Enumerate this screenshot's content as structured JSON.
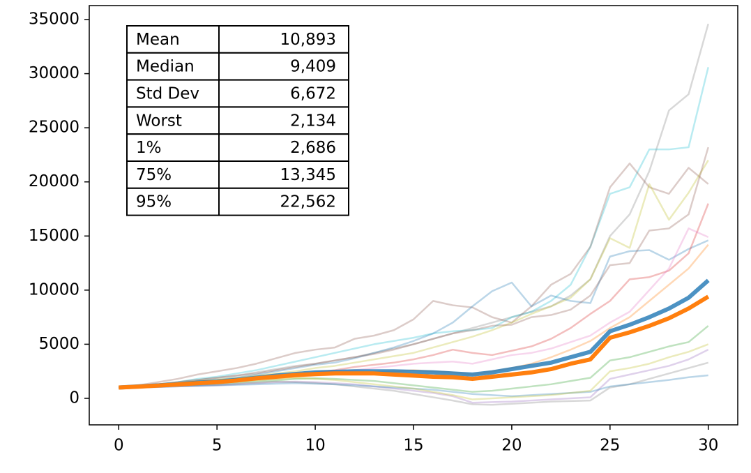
{
  "chart_data": {
    "type": "line",
    "x": [
      0,
      1,
      2,
      3,
      4,
      5,
      6,
      7,
      8,
      9,
      10,
      11,
      12,
      13,
      14,
      15,
      16,
      17,
      18,
      19,
      20,
      21,
      22,
      23,
      24,
      25,
      26,
      27,
      28,
      29,
      30
    ],
    "xlim": [
      -1.5,
      31.5
    ],
    "ylim": [
      -2450,
      36290
    ],
    "xticks": [
      0,
      5,
      10,
      15,
      20,
      25,
      30
    ],
    "yticks": [
      0,
      5000,
      10000,
      15000,
      20000,
      25000,
      30000,
      35000
    ],
    "series": [
      {
        "color": "#7f7f7f",
        "alpha": 0.3,
        "width": 2.5,
        "values": [
          1000,
          1100,
          1300,
          1500,
          1700,
          1900,
          2100,
          2400,
          2700,
          3000,
          3200,
          3500,
          3800,
          4200,
          4600,
          5000,
          5500,
          6000,
          6500,
          7000,
          7500,
          8000,
          8500,
          9500,
          11000,
          15000,
          17000,
          21000,
          26600,
          28100,
          34600
        ]
      },
      {
        "color": "#17becf",
        "alpha": 0.3,
        "width": 2.5,
        "values": [
          1000,
          1150,
          1300,
          1500,
          1800,
          2000,
          2300,
          2600,
          3000,
          3400,
          3800,
          4200,
          4600,
          5000,
          5300,
          5600,
          6000,
          6200,
          6300,
          6500,
          7500,
          8000,
          9000,
          10500,
          14000,
          18900,
          19500,
          23000,
          23000,
          23200,
          30600
        ]
      },
      {
        "color": "#8c564b",
        "alpha": 0.3,
        "width": 2.5,
        "values": [
          1000,
          1200,
          1500,
          1800,
          2200,
          2500,
          2800,
          3200,
          3700,
          4200,
          4500,
          4700,
          5500,
          5800,
          6300,
          7300,
          9000,
          8600,
          8400,
          7500,
          7000,
          8500,
          10500,
          11500,
          14000,
          19500,
          21700,
          19500,
          18900,
          21300,
          19800
        ]
      },
      {
        "color": "#bcbd22",
        "alpha": 0.3,
        "width": 2.5,
        "values": [
          1000,
          1100,
          1250,
          1400,
          1600,
          1750,
          1900,
          2100,
          2300,
          2500,
          2800,
          3000,
          3300,
          3600,
          3900,
          4200,
          4700,
          5200,
          5700,
          6300,
          7000,
          7800,
          8500,
          9300,
          11000,
          14800,
          13900,
          19800,
          16500,
          19000,
          22000
        ]
      },
      {
        "color": "#1f77b4",
        "alpha": 0.3,
        "width": 2.5,
        "values": [
          1000,
          1100,
          1250,
          1400,
          1550,
          1700,
          1900,
          2200,
          2500,
          2800,
          3100,
          3300,
          3700,
          4200,
          4700,
          5300,
          6000,
          7000,
          8500,
          9900,
          10700,
          8500,
          9500,
          9000,
          8800,
          13100,
          13600,
          13700,
          12800,
          13800,
          14600
        ]
      },
      {
        "color": "#d62728",
        "alpha": 0.3,
        "width": 2.5,
        "values": [
          1000,
          1050,
          1150,
          1250,
          1350,
          1500,
          1650,
          1800,
          1950,
          2200,
          2400,
          2600,
          2900,
          3100,
          3300,
          3600,
          4000,
          4500,
          4200,
          4000,
          4400,
          4800,
          5500,
          6500,
          7800,
          9000,
          11000,
          11200,
          11800,
          13400,
          18000
        ]
      },
      {
        "color": "#e377c2",
        "alpha": 0.3,
        "width": 2.5,
        "values": [
          1000,
          1100,
          1200,
          1300,
          1450,
          1600,
          1700,
          1900,
          2100,
          2300,
          2400,
          2500,
          2600,
          2800,
          3000,
          3200,
          3300,
          3400,
          3200,
          3600,
          4000,
          4200,
          4600,
          5200,
          5800,
          7000,
          8000,
          10000,
          12000,
          15700,
          14900
        ]
      },
      {
        "color": "#ff7f0e",
        "alpha": 0.3,
        "width": 2.5,
        "values": [
          1000,
          1050,
          1150,
          1250,
          1350,
          1450,
          1550,
          1700,
          1800,
          2000,
          2100,
          2200,
          2300,
          2400,
          2500,
          2600,
          2500,
          2400,
          2200,
          2500,
          2800,
          3200,
          3800,
          4500,
          5300,
          6500,
          7500,
          9000,
          10500,
          12000,
          14200
        ]
      },
      {
        "color": "#2ca02c",
        "alpha": 0.3,
        "width": 2.5,
        "values": [
          1000,
          1050,
          1100,
          1200,
          1250,
          1350,
          1450,
          1550,
          1650,
          1800,
          1850,
          1800,
          1700,
          1600,
          1400,
          1200,
          1000,
          800,
          600,
          700,
          900,
          1100,
          1300,
          1600,
          1900,
          3500,
          3800,
          4300,
          4800,
          5200,
          6700
        ]
      },
      {
        "color": "#9467bd",
        "alpha": 0.3,
        "width": 2.5,
        "values": [
          1000,
          1000,
          1050,
          1100,
          1150,
          1200,
          1300,
          1400,
          1500,
          1550,
          1500,
          1400,
          1300,
          1100,
          900,
          700,
          500,
          200,
          -400,
          -350,
          -300,
          -200,
          -100,
          0,
          100,
          1800,
          2200,
          2600,
          3000,
          3600,
          4500
        ]
      },
      {
        "color": "#7f7f7f",
        "alpha": 0.3,
        "width": 2.5,
        "values": [
          1000,
          1050,
          1100,
          1150,
          1200,
          1250,
          1350,
          1450,
          1550,
          1500,
          1400,
          1300,
          1100,
          900,
          700,
          400,
          100,
          -200,
          -550,
          -600,
          -500,
          -400,
          -300,
          -250,
          -200,
          1000,
          1300,
          1800,
          2300,
          2800,
          3300
        ]
      },
      {
        "color": "#1f77b4",
        "alpha": 0.3,
        "width": 2.5,
        "values": [
          1000,
          1000,
          1050,
          1100,
          1150,
          1200,
          1250,
          1300,
          1350,
          1400,
          1350,
          1300,
          1200,
          1100,
          1000,
          900,
          800,
          600,
          400,
          300,
          200,
          300,
          400,
          500,
          600,
          1100,
          1300,
          1500,
          1700,
          1950,
          2130
        ]
      },
      {
        "color": "#bcbd22",
        "alpha": 0.3,
        "width": 2.5,
        "values": [
          1000,
          1100,
          1200,
          1300,
          1400,
          1500,
          1600,
          1700,
          1800,
          1900,
          1800,
          1700,
          1500,
          1300,
          1100,
          900,
          600,
          300,
          -100,
          0,
          100,
          200,
          300,
          500,
          700,
          2500,
          2800,
          3200,
          3800,
          4300,
          5000
        ]
      },
      {
        "color": "#8c564b",
        "alpha": 0.3,
        "width": 2.5,
        "values": [
          1000,
          1150,
          1300,
          1500,
          1700,
          1900,
          2100,
          2300,
          2600,
          2900,
          3200,
          3500,
          3800,
          4100,
          4500,
          5000,
          5500,
          6000,
          6300,
          6700,
          6800,
          7500,
          7700,
          8200,
          9500,
          12300,
          12500,
          15500,
          15700,
          17000,
          23200
        ]
      },
      {
        "color": "#1f77b4",
        "alpha": 0.8,
        "width": 6,
        "values": [
          1000,
          1100,
          1200,
          1300,
          1450,
          1550,
          1700,
          1900,
          2100,
          2250,
          2400,
          2450,
          2500,
          2500,
          2500,
          2450,
          2400,
          2300,
          2200,
          2400,
          2700,
          3000,
          3300,
          3800,
          4300,
          6200,
          6800,
          7500,
          8300,
          9300,
          10900
        ]
      },
      {
        "color": "#ff7f0e",
        "alpha": 1,
        "width": 6,
        "values": [
          1000,
          1080,
          1180,
          1280,
          1400,
          1500,
          1650,
          1850,
          2000,
          2150,
          2250,
          2300,
          2300,
          2300,
          2200,
          2100,
          2000,
          1950,
          1800,
          2000,
          2200,
          2400,
          2700,
          3200,
          3600,
          5600,
          6100,
          6700,
          7400,
          8300,
          9400
        ]
      }
    ],
    "table": [
      [
        "Mean",
        "10,893"
      ],
      [
        "Median",
        "9,409"
      ],
      [
        "Std Dev",
        "6,672"
      ],
      [
        "Worst",
        "2,134"
      ],
      [
        "1%",
        "2,686"
      ],
      [
        "75%",
        "13,345"
      ],
      [
        "95%",
        "22,562"
      ]
    ]
  }
}
